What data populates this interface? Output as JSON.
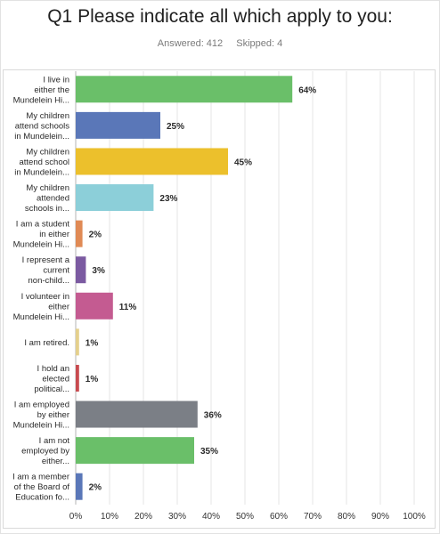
{
  "title": "Q1 Please indicate all which apply to you:",
  "answered": "Answered: 412",
  "skipped": "Skipped: 4",
  "chart_data": {
    "type": "bar",
    "orientation": "horizontal",
    "categories": [
      [
        "I live in",
        "either the",
        "Mundelein Hi..."
      ],
      [
        "My children",
        "attend schools",
        "in Mundelein..."
      ],
      [
        "My children",
        "attend school",
        "in Mundelein..."
      ],
      [
        "My children",
        "attended",
        "schools in..."
      ],
      [
        "I am a student",
        "in either",
        "Mundelein Hi..."
      ],
      [
        "I represent a",
        "current",
        "non-child..."
      ],
      [
        "I volunteer in",
        "either",
        "Mundelein Hi..."
      ],
      [
        "I am retired."
      ],
      [
        "I hold an",
        "elected",
        "political..."
      ],
      [
        "I am employed",
        "by either",
        "Mundelein Hi..."
      ],
      [
        "I am not",
        "employed by",
        "either..."
      ],
      [
        "I am a member",
        "of the Board of",
        "Education fo..."
      ]
    ],
    "values": [
      64,
      25,
      45,
      23,
      2,
      3,
      11,
      1,
      1,
      36,
      35,
      2
    ],
    "value_labels": [
      "64%",
      "25%",
      "45%",
      "23%",
      "2%",
      "3%",
      "11%",
      "1%",
      "1%",
      "36%",
      "35%",
      "2%"
    ],
    "colors": [
      "#6abf69",
      "#5a77b8",
      "#ecc02c",
      "#8ccfd9",
      "#e08a55",
      "#7b5aa1",
      "#c45b91",
      "#e4d08c",
      "#c84a4f",
      "#7b7f86",
      "#6abf69",
      "#5a77b8"
    ],
    "xlim": [
      0,
      100
    ],
    "xticks": [
      "0%",
      "10%",
      "20%",
      "30%",
      "40%",
      "50%",
      "60%",
      "70%",
      "80%",
      "90%",
      "100%"
    ],
    "grid": true
  }
}
